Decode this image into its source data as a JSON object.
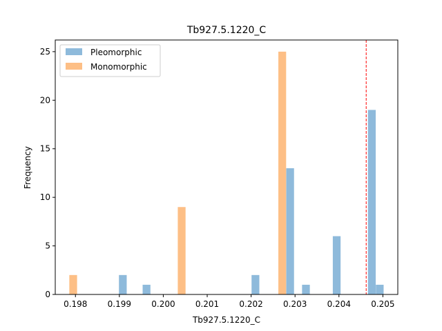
{
  "chart_data": {
    "type": "bar",
    "title": "Tb927.5.1220_C",
    "xlabel": "Tb927.5.1220_C",
    "ylabel": "Frequency",
    "xlim": [
      0.19754,
      0.20534
    ],
    "ylim": [
      0,
      26.2
    ],
    "xticks": [
      0.198,
      0.199,
      0.2,
      0.201,
      0.202,
      0.203,
      0.204,
      0.205
    ],
    "xtick_labels": [
      "0.198",
      "0.199",
      "0.200",
      "0.201",
      "0.202",
      "0.203",
      "0.204",
      "0.205"
    ],
    "yticks": [
      0,
      5,
      10,
      15,
      20,
      25
    ],
    "ytick_labels": [
      "0",
      "5",
      "10",
      "15",
      "20",
      "25"
    ],
    "bin_width": 0.000177,
    "series": [
      {
        "name": "Pleomorphic",
        "color": "#8ebadb",
        "bins": [
          {
            "start": 0.19899,
            "count": 2
          },
          {
            "start": 0.19953,
            "count": 1
          },
          {
            "start": 0.20201,
            "count": 2
          },
          {
            "start": 0.2028,
            "count": 13
          },
          {
            "start": 0.20316,
            "count": 1
          },
          {
            "start": 0.20386,
            "count": 6
          },
          {
            "start": 0.20466,
            "count": 19
          },
          {
            "start": 0.20484,
            "count": 1
          }
        ]
      },
      {
        "name": "Monomorphic",
        "color": "#fdbf86",
        "bins": [
          {
            "start": 0.19786,
            "count": 2
          },
          {
            "start": 0.20033,
            "count": 9
          },
          {
            "start": 0.20262,
            "count": 25
          }
        ]
      }
    ],
    "reference_line": {
      "x": 0.20462,
      "color": "#ff0000",
      "style": "dashed"
    },
    "legend_position": "top-left",
    "grid": false
  }
}
